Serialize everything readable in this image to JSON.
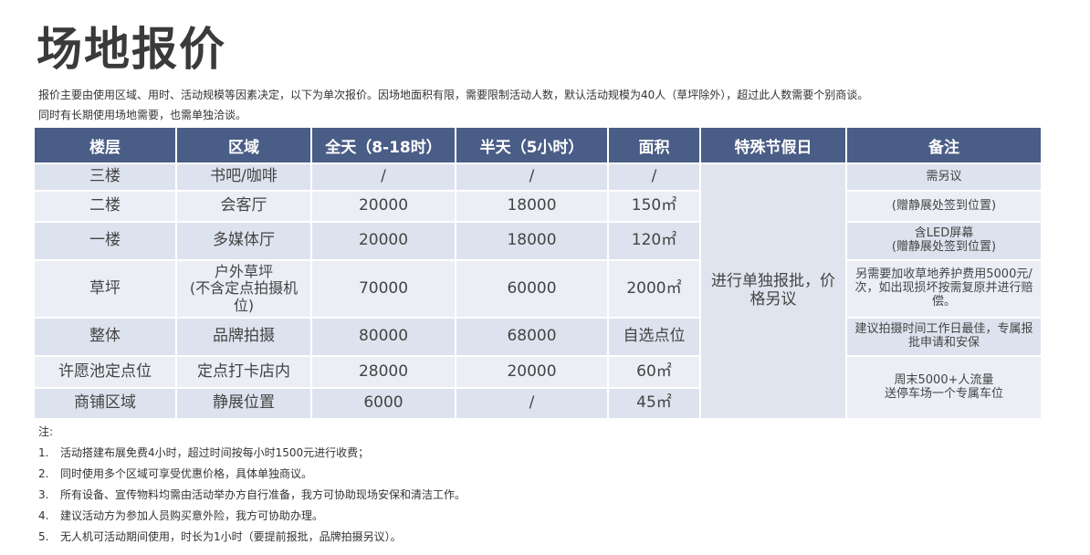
{
  "header": {
    "title": "场地报价",
    "intro": [
      "报价主要由使用区域、用时、活动规模等因素决定，以下为单次报价。因场地面积有限，需要限制活动人数，默认活动规模为40人（草坪除外），超过此人数需要个别商谈。",
      "同时有长期使用场地需要，也需单独洽谈。"
    ]
  },
  "table": {
    "columns": [
      "楼层",
      "区域",
      "全天（8-18时）",
      "半天（5小时）",
      "面积",
      "特殊节假日",
      "备注"
    ],
    "rows": [
      [
        "三楼",
        "书吧/咖啡",
        "/",
        "/",
        "/"
      ],
      [
        "二楼",
        "会客厅",
        "20000",
        "18000",
        "150㎡"
      ],
      [
        "一楼",
        "多媒体厅",
        "20000",
        "18000",
        "120㎡"
      ],
      [
        "草坪",
        "户外草坪\n(不含定点拍摄机位)",
        "70000",
        "60000",
        "2000㎡"
      ],
      [
        "整体",
        "品牌拍摄",
        "80000",
        "68000",
        "自选点位"
      ],
      [
        "许愿池定点位",
        "定点打卡店内",
        "28000",
        "20000",
        "60㎡"
      ],
      [
        "商铺区域",
        "静展位置",
        "6000",
        "/",
        "45㎡"
      ]
    ],
    "special": "进行单独报批，价格另议",
    "remarks": [
      "需另议",
      "(赠静展处签到位置)",
      "含LED屏幕\n(赠静展处签到位置)",
      "另需要加收草地养护费用5000元/次，如出现损坏按需复原并进行赔偿。",
      "建议拍摄时间工作日最佳，专属报批申请和安保",
      "周末5000+人流量\n送停车场一个专属车位"
    ]
  },
  "notes": {
    "label": "注:",
    "items": [
      {
        "number": "1.",
        "text": "活动搭建布展免费4小时，超过时间按每小时1500元进行收费；"
      },
      {
        "number": "2.",
        "text": "同时使用多个区域可享受优惠价格，具体单独商议。"
      },
      {
        "number": "3.",
        "text": "所有设备、宣传物料均需由活动举办方自行准备，我方可协助现场安保和清洁工作。"
      },
      {
        "number": "4.",
        "text": "建议活动方为参加人员购买意外险，我方可协助办理。"
      },
      {
        "number": "5.",
        "text": "无人机可活动期间使用，时长为1小时（要提前报批，品牌拍摄另议）。"
      }
    ]
  }
}
